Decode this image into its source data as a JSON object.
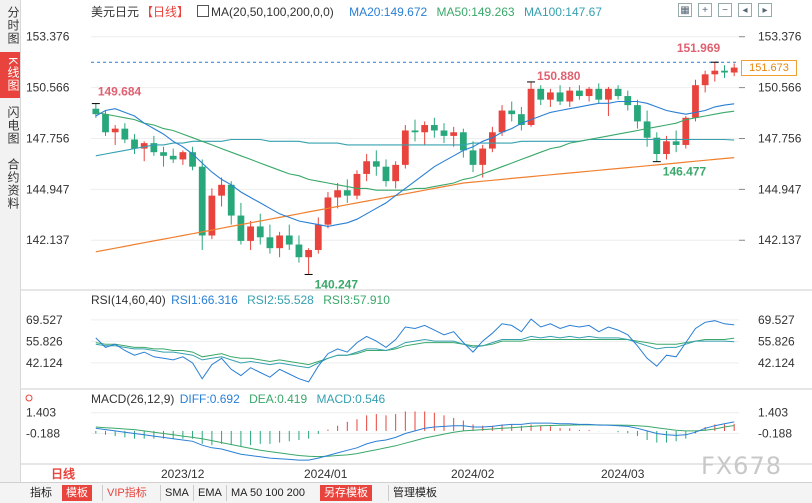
{
  "side_tabs": [
    {
      "label": "分时图",
      "active": false
    },
    {
      "label": "K线图",
      "active": true
    },
    {
      "label": "闪电图",
      "active": false
    },
    {
      "label": "合约资料",
      "active": false
    }
  ],
  "header": {
    "symbol": "美元日元",
    "period_tag": "【日线】",
    "ma_label": "MA(20,50,100,200,0,0)",
    "ma20": "MA20:149.672",
    "ma50": "MA50:149.263",
    "ma100": "MA100:147.67"
  },
  "rsi_header": {
    "label": "RSI(14,60,40)",
    "rsi1": "RSI1:66.316",
    "rsi2": "RSI2:55.528",
    "rsi3": "RSI3:57.910"
  },
  "macd_header": {
    "label": "MACD(26,12,9)",
    "diff": "DIFF:0.692",
    "dea": "DEA:0.419",
    "macd": "MACD:0.546"
  },
  "tool_icons": [
    "grid-toggle-icon",
    "zoom-in-icon",
    "zoom-out-icon",
    "expand-icon",
    "contract-icon"
  ],
  "price_axis_labels": [
    "153.376",
    "150.566",
    "147.756",
    "144.947",
    "142.137"
  ],
  "rsi_axis_labels": [
    "69.527",
    "55.826",
    "42.124"
  ],
  "macd_axis_labels": [
    "1.403",
    "-0.188"
  ],
  "current_price": "151.673",
  "annotations": {
    "high_left": "149.684",
    "high_mid": "150.880",
    "high_right": "151.969",
    "low_left": "140.247",
    "low_right": "146.477"
  },
  "x_axis_labels": [
    "日线",
    "2023/12",
    "2024/01",
    "2024/02",
    "2024/03"
  ],
  "bottom_bar": [
    "指标",
    "模板",
    "VIP指标",
    "SMA",
    "EMA",
    "MA 50 100 200",
    "另存模板",
    "管理模板"
  ],
  "watermark": "FX678",
  "colors": {
    "up": "#e8433c",
    "down": "#28a87a",
    "ma20": "#2a7fd4",
    "ma50": "#3aa86a",
    "ma100": "#36a0b0",
    "ma200": "#f08030"
  },
  "chart_data": {
    "type": "candlestick",
    "price_range": [
      139.5,
      154.3
    ],
    "candles": [
      [
        149.4,
        149.7,
        148.9,
        149.1
      ],
      [
        149.1,
        149.3,
        147.9,
        148.1
      ],
      [
        148.1,
        148.5,
        147.4,
        148.3
      ],
      [
        148.3,
        148.6,
        147.5,
        147.7
      ],
      [
        147.7,
        148.0,
        146.9,
        147.2
      ],
      [
        147.2,
        147.6,
        146.5,
        147.5
      ],
      [
        147.5,
        147.9,
        146.8,
        147.0
      ],
      [
        147.0,
        147.3,
        146.2,
        146.8
      ],
      [
        146.8,
        147.2,
        146.4,
        146.6
      ],
      [
        146.6,
        147.1,
        146.3,
        147.0
      ],
      [
        147.0,
        147.3,
        146.0,
        146.2
      ],
      [
        146.2,
        146.6,
        141.6,
        142.4
      ],
      [
        142.4,
        145.0,
        142.2,
        144.6
      ],
      [
        144.6,
        145.6,
        144.0,
        145.2
      ],
      [
        145.2,
        145.4,
        143.0,
        143.5
      ],
      [
        143.5,
        144.2,
        141.9,
        142.1
      ],
      [
        142.1,
        143.2,
        141.6,
        142.9
      ],
      [
        142.9,
        143.6,
        141.9,
        142.3
      ],
      [
        142.3,
        143.0,
        141.4,
        141.7
      ],
      [
        141.7,
        142.6,
        141.2,
        142.4
      ],
      [
        142.4,
        143.0,
        141.6,
        141.9
      ],
      [
        141.9,
        142.4,
        140.9,
        141.2
      ],
      [
        141.2,
        141.7,
        140.247,
        141.6
      ],
      [
        141.6,
        143.4,
        141.4,
        143.0
      ],
      [
        143.0,
        144.8,
        142.8,
        144.5
      ],
      [
        144.5,
        145.3,
        143.9,
        144.9
      ],
      [
        144.9,
        145.5,
        144.2,
        144.6
      ],
      [
        144.6,
        146.0,
        144.4,
        145.8
      ],
      [
        145.8,
        146.9,
        145.4,
        146.5
      ],
      [
        146.5,
        147.1,
        145.7,
        146.2
      ],
      [
        146.2,
        146.6,
        145.1,
        145.4
      ],
      [
        145.4,
        146.5,
        145.0,
        146.3
      ],
      [
        146.3,
        148.5,
        146.1,
        148.2
      ],
      [
        148.2,
        148.8,
        147.6,
        148.1
      ],
      [
        148.1,
        148.7,
        147.4,
        148.5
      ],
      [
        148.5,
        148.9,
        147.8,
        148.2
      ],
      [
        148.2,
        148.6,
        147.5,
        147.9
      ],
      [
        147.9,
        148.4,
        147.3,
        148.1
      ],
      [
        148.1,
        148.3,
        146.7,
        147.1
      ],
      [
        147.1,
        147.6,
        145.9,
        146.3
      ],
      [
        146.3,
        147.4,
        145.6,
        147.2
      ],
      [
        147.2,
        148.4,
        147.0,
        148.1
      ],
      [
        148.1,
        149.6,
        147.9,
        149.3
      ],
      [
        149.3,
        149.8,
        148.7,
        149.1
      ],
      [
        149.1,
        149.5,
        148.2,
        148.5
      ],
      [
        148.5,
        150.88,
        148.4,
        150.5
      ],
      [
        150.5,
        150.7,
        149.6,
        149.9
      ],
      [
        149.9,
        150.5,
        149.5,
        150.3
      ],
      [
        150.3,
        150.7,
        149.6,
        149.8
      ],
      [
        149.8,
        150.6,
        149.5,
        150.4
      ],
      [
        150.4,
        150.7,
        149.9,
        150.1
      ],
      [
        150.1,
        150.6,
        149.8,
        150.5
      ],
      [
        150.5,
        150.8,
        149.7,
        149.9
      ],
      [
        149.9,
        150.6,
        149.0,
        150.5
      ],
      [
        150.5,
        150.7,
        149.9,
        150.1
      ],
      [
        150.1,
        150.4,
        149.3,
        149.6
      ],
      [
        149.6,
        149.9,
        148.3,
        148.7
      ],
      [
        148.7,
        149.3,
        147.3,
        147.8
      ],
      [
        147.8,
        148.1,
        146.477,
        146.9
      ],
      [
        146.9,
        147.9,
        146.6,
        147.6
      ],
      [
        147.6,
        148.2,
        147.0,
        147.4
      ],
      [
        147.4,
        149.0,
        147.2,
        148.9
      ],
      [
        148.9,
        151.0,
        148.7,
        150.7
      ],
      [
        150.7,
        151.5,
        150.3,
        151.3
      ],
      [
        151.3,
        151.969,
        150.9,
        151.5
      ],
      [
        151.5,
        151.8,
        151.1,
        151.4
      ],
      [
        151.4,
        151.9,
        151.2,
        151.673
      ]
    ],
    "ma20": [
      149.0,
      149.3,
      149.4,
      149.2,
      149.0,
      148.6,
      148.3,
      148.0,
      147.6,
      147.3,
      146.9,
      146.4,
      145.9,
      145.5,
      145.2,
      144.8,
      144.5,
      144.2,
      143.9,
      143.6,
      143.4,
      143.2,
      143.1,
      143.0,
      142.9,
      143.0,
      143.1,
      143.3,
      143.6,
      143.9,
      144.2,
      144.6,
      145.0,
      145.4,
      145.8,
      146.2,
      146.5,
      146.8,
      147.1,
      147.3,
      147.6,
      147.8,
      148.1,
      148.3,
      148.6,
      148.8,
      149.0,
      149.2,
      149.3,
      149.4,
      149.5,
      149.6,
      149.7,
      149.7,
      149.8,
      149.8,
      149.8,
      149.7,
      149.5,
      149.3,
      149.2,
      149.1,
      149.2,
      149.3,
      149.5,
      149.6,
      149.672
    ],
    "ma50": [
      149.2,
      149.1,
      149.0,
      148.9,
      148.8,
      148.6,
      148.5,
      148.3,
      148.2,
      148.0,
      147.8,
      147.6,
      147.4,
      147.2,
      147.0,
      146.8,
      146.6,
      146.4,
      146.2,
      146.0,
      145.8,
      145.7,
      145.5,
      145.4,
      145.3,
      145.2,
      145.1,
      145.0,
      145.0,
      144.9,
      144.9,
      144.9,
      144.9,
      145.0,
      145.0,
      145.1,
      145.2,
      145.3,
      145.5,
      145.6,
      145.8,
      146.0,
      146.2,
      146.4,
      146.6,
      146.8,
      147.0,
      147.2,
      147.3,
      147.5,
      147.6,
      147.7,
      147.8,
      147.9,
      148.0,
      148.1,
      148.2,
      148.3,
      148.4,
      148.5,
      148.6,
      148.8,
      148.9,
      149.0,
      149.1,
      149.2,
      149.263
    ],
    "ma100": [
      146.8,
      146.9,
      147.0,
      147.1,
      147.2,
      147.3,
      147.4,
      147.4,
      147.5,
      147.5,
      147.6,
      147.6,
      147.6,
      147.6,
      147.7,
      147.7,
      147.7,
      147.7,
      147.6,
      147.6,
      147.6,
      147.6,
      147.5,
      147.5,
      147.5,
      147.5,
      147.4,
      147.4,
      147.4,
      147.4,
      147.4,
      147.4,
      147.4,
      147.4,
      147.4,
      147.4,
      147.4,
      147.4,
      147.4,
      147.5,
      147.5,
      147.5,
      147.5,
      147.5,
      147.6,
      147.6,
      147.6,
      147.6,
      147.6,
      147.6,
      147.6,
      147.7,
      147.7,
      147.7,
      147.7,
      147.7,
      147.7,
      147.7,
      147.7,
      147.7,
      147.7,
      147.7,
      147.7,
      147.7,
      147.7,
      147.7,
      147.67
    ],
    "ma200": [
      141.5,
      141.6,
      141.7,
      141.8,
      141.9,
      142.0,
      142.1,
      142.2,
      142.3,
      142.4,
      142.5,
      142.6,
      142.7,
      142.8,
      142.9,
      143.0,
      143.1,
      143.2,
      143.3,
      143.4,
      143.5,
      143.6,
      143.7,
      143.8,
      143.9,
      144.0,
      144.1,
      144.2,
      144.3,
      144.4,
      144.5,
      144.6,
      144.7,
      144.8,
      144.9,
      145.0,
      145.1,
      145.2,
      145.3,
      145.35,
      145.4,
      145.45,
      145.5,
      145.55,
      145.6,
      145.65,
      145.7,
      145.75,
      145.8,
      145.85,
      145.9,
      145.95,
      146.0,
      146.05,
      146.1,
      146.15,
      146.2,
      146.25,
      146.3,
      146.35,
      146.4,
      146.45,
      146.5,
      146.55,
      146.6,
      146.65,
      146.7
    ],
    "rsi_range": [
      28,
      79
    ],
    "rsi1": [
      58,
      52,
      54,
      50,
      47,
      49,
      46,
      45,
      44,
      46,
      42,
      32,
      41,
      45,
      38,
      34,
      39,
      36,
      33,
      38,
      35,
      32,
      30,
      40,
      48,
      51,
      49,
      55,
      59,
      56,
      52,
      57,
      65,
      64,
      66,
      63,
      60,
      62,
      55,
      49,
      56,
      61,
      67,
      66,
      62,
      70,
      65,
      67,
      64,
      66,
      65,
      66,
      62,
      65,
      63,
      60,
      53,
      45,
      40,
      47,
      46,
      55,
      64,
      68,
      69,
      67,
      66.316
    ],
    "rsi2": [
      54,
      53,
      53,
      52,
      51,
      51,
      50,
      49,
      49,
      48,
      47,
      44,
      45,
      46,
      44,
      42,
      43,
      42,
      41,
      42,
      41,
      40,
      39,
      42,
      45,
      47,
      47,
      49,
      51,
      51,
      50,
      52,
      55,
      56,
      57,
      56,
      56,
      56,
      54,
      52,
      53,
      55,
      57,
      57,
      57,
      59,
      58,
      59,
      58,
      59,
      58,
      59,
      58,
      58,
      58,
      57,
      55,
      53,
      51,
      52,
      52,
      54,
      56,
      56,
      56,
      56,
      55.528
    ],
    "rsi3": [
      55,
      54,
      54,
      53,
      52,
      52,
      51,
      51,
      50,
      50,
      49,
      46,
      47,
      48,
      46,
      45,
      45,
      44,
      43,
      44,
      43,
      42,
      41,
      43,
      45,
      47,
      47,
      48,
      50,
      50,
      50,
      51,
      53,
      54,
      55,
      55,
      55,
      55,
      54,
      53,
      53,
      54,
      56,
      56,
      56,
      57,
      57,
      57,
      57,
      57,
      57,
      57,
      57,
      57,
      57,
      57,
      56,
      55,
      54,
      54,
      54,
      55,
      56,
      57,
      57,
      57,
      57.91
    ],
    "macd_range": [
      -2.4,
      2.0
    ],
    "diff": [
      0.2,
      0.1,
      0.0,
      -0.1,
      -0.2,
      -0.3,
      -0.4,
      -0.5,
      -0.6,
      -0.7,
      -0.8,
      -1.1,
      -1.3,
      -1.4,
      -1.6,
      -1.8,
      -1.9,
      -2.0,
      -2.1,
      -2.15,
      -2.2,
      -2.25,
      -2.25,
      -2.1,
      -1.9,
      -1.7,
      -1.5,
      -1.3,
      -1.0,
      -0.8,
      -0.7,
      -0.5,
      -0.2,
      0.0,
      0.2,
      0.3,
      0.35,
      0.4,
      0.4,
      0.3,
      0.3,
      0.35,
      0.45,
      0.5,
      0.5,
      0.6,
      0.6,
      0.6,
      0.55,
      0.55,
      0.5,
      0.5,
      0.45,
      0.45,
      0.4,
      0.35,
      0.2,
      0.0,
      -0.2,
      -0.3,
      -0.35,
      -0.3,
      -0.1,
      0.2,
      0.4,
      0.55,
      0.692
    ],
    "dea": [
      0.3,
      0.25,
      0.2,
      0.15,
      0.1,
      0.0,
      -0.1,
      -0.2,
      -0.3,
      -0.4,
      -0.5,
      -0.6,
      -0.75,
      -0.9,
      -1.05,
      -1.2,
      -1.35,
      -1.5,
      -1.6,
      -1.7,
      -1.8,
      -1.9,
      -1.95,
      -1.98,
      -1.95,
      -1.9,
      -1.85,
      -1.75,
      -1.6,
      -1.45,
      -1.3,
      -1.15,
      -0.95,
      -0.75,
      -0.55,
      -0.4,
      -0.25,
      -0.1,
      0.0,
      0.05,
      0.1,
      0.15,
      0.2,
      0.25,
      0.3,
      0.35,
      0.4,
      0.42,
      0.44,
      0.45,
      0.46,
      0.46,
      0.46,
      0.45,
      0.45,
      0.44,
      0.4,
      0.35,
      0.25,
      0.15,
      0.05,
      0.0,
      0.0,
      0.05,
      0.15,
      0.3,
      0.419
    ]
  }
}
